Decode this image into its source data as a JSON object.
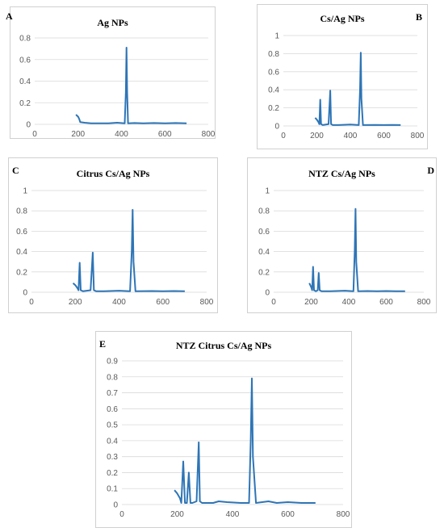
{
  "colors": {
    "series": "#2e75b6",
    "grid": "#d9d9d9",
    "axis_text": "#595959",
    "border": "#d0d0d0"
  },
  "chart_data": [
    {
      "letter": "A",
      "type": "line",
      "title": "Ag NPs",
      "xlabel": "",
      "ylabel": "",
      "xlim": [
        0,
        800
      ],
      "ylim": [
        0,
        0.8
      ],
      "xticks": [
        0,
        200,
        400,
        600,
        800
      ],
      "yticks": [
        0,
        0.2,
        0.4,
        0.6,
        0.8
      ],
      "grid": true,
      "legend": "none",
      "x": [
        190,
        200,
        205,
        210,
        230,
        260,
        300,
        340,
        380,
        415,
        420,
        423,
        426,
        430,
        460,
        500,
        550,
        600,
        650,
        700
      ],
      "y": [
        0.09,
        0.07,
        0.05,
        0.02,
        0.015,
        0.01,
        0.01,
        0.01,
        0.015,
        0.01,
        0.3,
        0.71,
        0.3,
        0.01,
        0.012,
        0.01,
        0.012,
        0.01,
        0.012,
        0.01
      ]
    },
    {
      "letter": "B",
      "type": "line",
      "title": "Cs/Ag NPs",
      "xlabel": "",
      "ylabel": "",
      "xlim": [
        0,
        800
      ],
      "ylim": [
        0,
        1
      ],
      "xticks": [
        0,
        200,
        400,
        600,
        800
      ],
      "yticks": [
        0,
        0.2,
        0.4,
        0.6,
        0.8,
        1
      ],
      "grid": true,
      "legend": "none",
      "x": [
        190,
        200,
        210,
        215,
        220,
        225,
        235,
        270,
        280,
        285,
        295,
        330,
        400,
        450,
        458,
        462,
        466,
        475,
        550,
        600,
        650,
        700
      ],
      "y": [
        0.09,
        0.07,
        0.04,
        0.02,
        0.29,
        0.02,
        0.01,
        0.02,
        0.39,
        0.02,
        0.01,
        0.01,
        0.015,
        0.01,
        0.4,
        0.81,
        0.3,
        0.01,
        0.012,
        0.01,
        0.012,
        0.01
      ]
    },
    {
      "letter": "C",
      "type": "line",
      "title": "Citrus Cs/Ag NPs",
      "xlabel": "",
      "ylabel": "",
      "xlim": [
        0,
        800
      ],
      "ylim": [
        0,
        1
      ],
      "xticks": [
        0,
        200,
        400,
        600,
        800
      ],
      "yticks": [
        0,
        0.2,
        0.4,
        0.6,
        0.8,
        1
      ],
      "grid": true,
      "legend": "none",
      "x": [
        190,
        200,
        210,
        215,
        220,
        225,
        235,
        270,
        280,
        285,
        295,
        330,
        400,
        450,
        458,
        462,
        466,
        475,
        550,
        600,
        650,
        700
      ],
      "y": [
        0.09,
        0.07,
        0.04,
        0.02,
        0.29,
        0.02,
        0.01,
        0.02,
        0.39,
        0.02,
        0.01,
        0.01,
        0.015,
        0.01,
        0.4,
        0.81,
        0.3,
        0.01,
        0.012,
        0.01,
        0.012,
        0.01
      ]
    },
    {
      "letter": "D",
      "type": "line",
      "title": "NTZ Cs/Ag NPs",
      "xlabel": "",
      "ylabel": "",
      "xlim": [
        0,
        800
      ],
      "ylim": [
        0,
        1
      ],
      "xticks": [
        0,
        200,
        400,
        600,
        800
      ],
      "yticks": [
        0,
        0.2,
        0.4,
        0.6,
        0.8,
        1
      ],
      "grid": true,
      "legend": "none",
      "x": [
        190,
        200,
        205,
        210,
        215,
        225,
        235,
        240,
        245,
        255,
        300,
        380,
        425,
        432,
        436,
        440,
        450,
        500,
        550,
        600,
        650,
        700
      ],
      "y": [
        0.09,
        0.05,
        0.02,
        0.25,
        0.02,
        0.01,
        0.02,
        0.19,
        0.02,
        0.01,
        0.01,
        0.015,
        0.01,
        0.4,
        0.82,
        0.3,
        0.01,
        0.012,
        0.01,
        0.012,
        0.01,
        0.01
      ]
    },
    {
      "letter": "E",
      "type": "line",
      "title": "NTZ Citrus Cs/Ag NPs",
      "xlabel": "",
      "ylabel": "",
      "xlim": [
        0,
        800
      ],
      "ylim": [
        0,
        0.9
      ],
      "xticks": [
        0,
        200,
        400,
        600,
        800
      ],
      "yticks": [
        0,
        0.1,
        0.2,
        0.3,
        0.4,
        0.5,
        0.6,
        0.7,
        0.8,
        0.9
      ],
      "grid": true,
      "legend": "none",
      "x": [
        190,
        200,
        210,
        215,
        222,
        228,
        235,
        242,
        248,
        255,
        270,
        278,
        282,
        290,
        330,
        350,
        380,
        430,
        460,
        466,
        470,
        474,
        485,
        530,
        560,
        600,
        650,
        700
      ],
      "y": [
        0.09,
        0.07,
        0.04,
        0.01,
        0.27,
        0.01,
        0.01,
        0.2,
        0.01,
        0.01,
        0.02,
        0.39,
        0.02,
        0.01,
        0.01,
        0.02,
        0.015,
        0.01,
        0.01,
        0.4,
        0.79,
        0.3,
        0.01,
        0.02,
        0.01,
        0.015,
        0.01,
        0.01
      ]
    }
  ]
}
